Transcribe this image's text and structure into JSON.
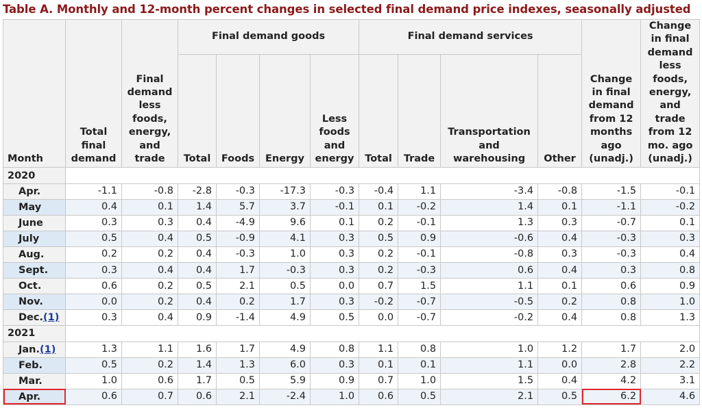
{
  "title": "Table A. Monthly and 12-month percent changes in selected final demand price indexes, seasonally adjusted",
  "highlight_color": "#e0262b",
  "headers": {
    "month": "Month",
    "total_final_demand": [
      "Total",
      "final",
      "demand"
    ],
    "fd_less": [
      "Final",
      "demand",
      "less",
      "foods,",
      "energy,",
      "and",
      "trade"
    ],
    "goods_group": "Final demand goods",
    "services_group": "Final demand services",
    "g_total": "Total",
    "g_foods": "Foods",
    "g_energy": "Energy",
    "g_less": [
      "Less",
      "foods",
      "and",
      "energy"
    ],
    "s_total": "Total",
    "s_trade": "Trade",
    "s_transport": [
      "Transportation",
      "and",
      "warehousing"
    ],
    "s_other": "Other",
    "change12": [
      "Change",
      "in final",
      "demand",
      "from 12",
      "months",
      "ago",
      "(unadj.)"
    ],
    "change12_less": [
      "Change",
      "in final",
      "demand",
      "less",
      "foods,",
      "energy,",
      "and",
      "trade",
      "from 12",
      "mo. ago",
      "(unadj.)"
    ]
  },
  "years": [
    {
      "year": "2020",
      "rows": [
        {
          "month": "Apr.",
          "values": [
            "-1.1",
            "-0.8",
            "-2.8",
            "-0.3",
            "-17.3",
            "-0.3",
            "-0.4",
            "1.1",
            "-3.4",
            "-0.8",
            "-1.5",
            "-0.1"
          ]
        },
        {
          "month": "May",
          "values": [
            "0.4",
            "0.1",
            "1.4",
            "5.7",
            "3.7",
            "-0.1",
            "0.1",
            "-0.2",
            "1.4",
            "0.1",
            "-1.1",
            "-0.2"
          ]
        },
        {
          "month": "June",
          "values": [
            "0.3",
            "0.3",
            "0.4",
            "-4.9",
            "9.6",
            "0.1",
            "0.2",
            "-0.1",
            "1.3",
            "0.3",
            "-0.7",
            "0.1"
          ]
        },
        {
          "month": "July",
          "values": [
            "0.5",
            "0.4",
            "0.5",
            "-0.9",
            "4.1",
            "0.3",
            "0.5",
            "0.9",
            "-0.6",
            "0.4",
            "-0.3",
            "0.3"
          ]
        },
        {
          "month": "Aug.",
          "values": [
            "0.2",
            "0.2",
            "0.4",
            "-0.3",
            "1.0",
            "0.3",
            "0.2",
            "-0.1",
            "-0.8",
            "0.3",
            "-0.3",
            "0.4"
          ]
        },
        {
          "month": "Sept.",
          "values": [
            "0.3",
            "0.4",
            "0.4",
            "1.7",
            "-0.3",
            "0.3",
            "0.2",
            "-0.3",
            "0.6",
            "0.4",
            "0.3",
            "0.8"
          ]
        },
        {
          "month": "Oct.",
          "values": [
            "0.6",
            "0.2",
            "0.5",
            "2.1",
            "0.5",
            "0.0",
            "0.7",
            "1.5",
            "1.1",
            "0.1",
            "0.6",
            "0.9"
          ]
        },
        {
          "month": "Nov.",
          "values": [
            "0.0",
            "0.2",
            "0.4",
            "0.2",
            "1.7",
            "0.3",
            "-0.2",
            "-0.7",
            "-0.5",
            "0.2",
            "0.8",
            "1.0"
          ]
        },
        {
          "month": "Dec.",
          "footnote": "(1)",
          "values": [
            "0.3",
            "0.4",
            "0.9",
            "-1.4",
            "4.9",
            "0.5",
            "0.0",
            "-0.7",
            "-0.2",
            "0.4",
            "0.8",
            "1.3"
          ]
        }
      ]
    },
    {
      "year": "2021",
      "rows": [
        {
          "month": "Jan.",
          "footnote": "(1)",
          "values": [
            "1.3",
            "1.1",
            "1.6",
            "1.7",
            "4.9",
            "0.8",
            "1.1",
            "0.8",
            "1.0",
            "1.2",
            "1.7",
            "2.0"
          ]
        },
        {
          "month": "Feb.",
          "values": [
            "0.5",
            "0.2",
            "1.4",
            "1.3",
            "6.0",
            "0.3",
            "0.1",
            "0.1",
            "1.1",
            "0.0",
            "2.8",
            "2.2"
          ]
        },
        {
          "month": "Mar.",
          "values": [
            "1.0",
            "0.6",
            "1.7",
            "0.5",
            "5.9",
            "0.9",
            "0.7",
            "1.0",
            "1.5",
            "0.4",
            "4.2",
            "3.1"
          ]
        },
        {
          "month": "Apr.",
          "highlight": true,
          "values": [
            "0.6",
            "0.7",
            "0.6",
            "2.1",
            "-2.4",
            "1.0",
            "0.6",
            "0.5",
            "2.1",
            "0.5",
            "6.2",
            "4.6"
          ],
          "highlight_cols": [
            10
          ]
        }
      ]
    }
  ]
}
